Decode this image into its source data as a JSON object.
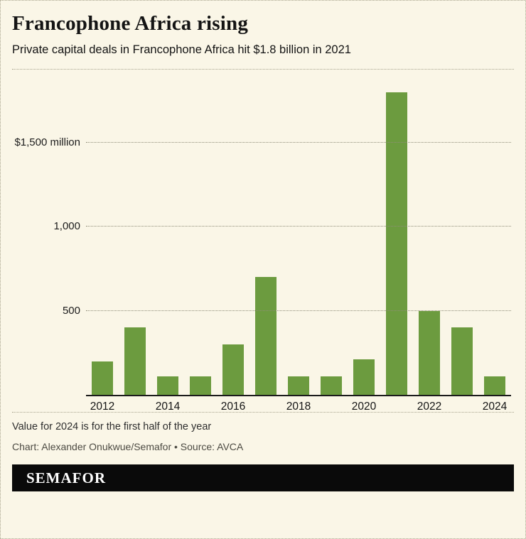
{
  "header": {
    "title": "Francophone Africa rising",
    "subtitle": "Private capital deals in Francophone Africa hit $1.8 billion in 2021"
  },
  "chart_data": {
    "type": "bar",
    "title": "Francophone Africa rising",
    "subtitle": "Private capital deals in Francophone Africa hit $1.8 billion in 2021",
    "xlabel": "",
    "ylabel": "$ million",
    "categories": [
      "2012",
      "2013",
      "2014",
      "2015",
      "2016",
      "2017",
      "2018",
      "2019",
      "2020",
      "2021",
      "2022",
      "2023",
      "2024"
    ],
    "values": [
      200,
      400,
      110,
      110,
      300,
      700,
      110,
      110,
      210,
      1800,
      500,
      400,
      110
    ],
    "ylim": [
      0,
      1900
    ],
    "yticks": [
      {
        "value": 500,
        "label": "500"
      },
      {
        "value": 1000,
        "label": "1,000"
      },
      {
        "value": 1500,
        "label": "$1,500 million"
      }
    ],
    "x_tick_labels": [
      "2012",
      "2014",
      "2016",
      "2018",
      "2020",
      "2022",
      "2024"
    ],
    "bar_color": "#6C9B3F",
    "grid": "horizontal-dotted",
    "legend": "none"
  },
  "footer": {
    "note": "Value for 2024 is for the first half of the year",
    "credit": "Chart: Alexander Onukwue/Semafor • Source: AVCA",
    "brand": "SEMAFOR"
  },
  "colors": {
    "background": "#FAF6E7",
    "bar": "#6C9B3F",
    "gridline": "#908D79",
    "brand_bar": "#0A0A0A",
    "text": "#141414"
  }
}
